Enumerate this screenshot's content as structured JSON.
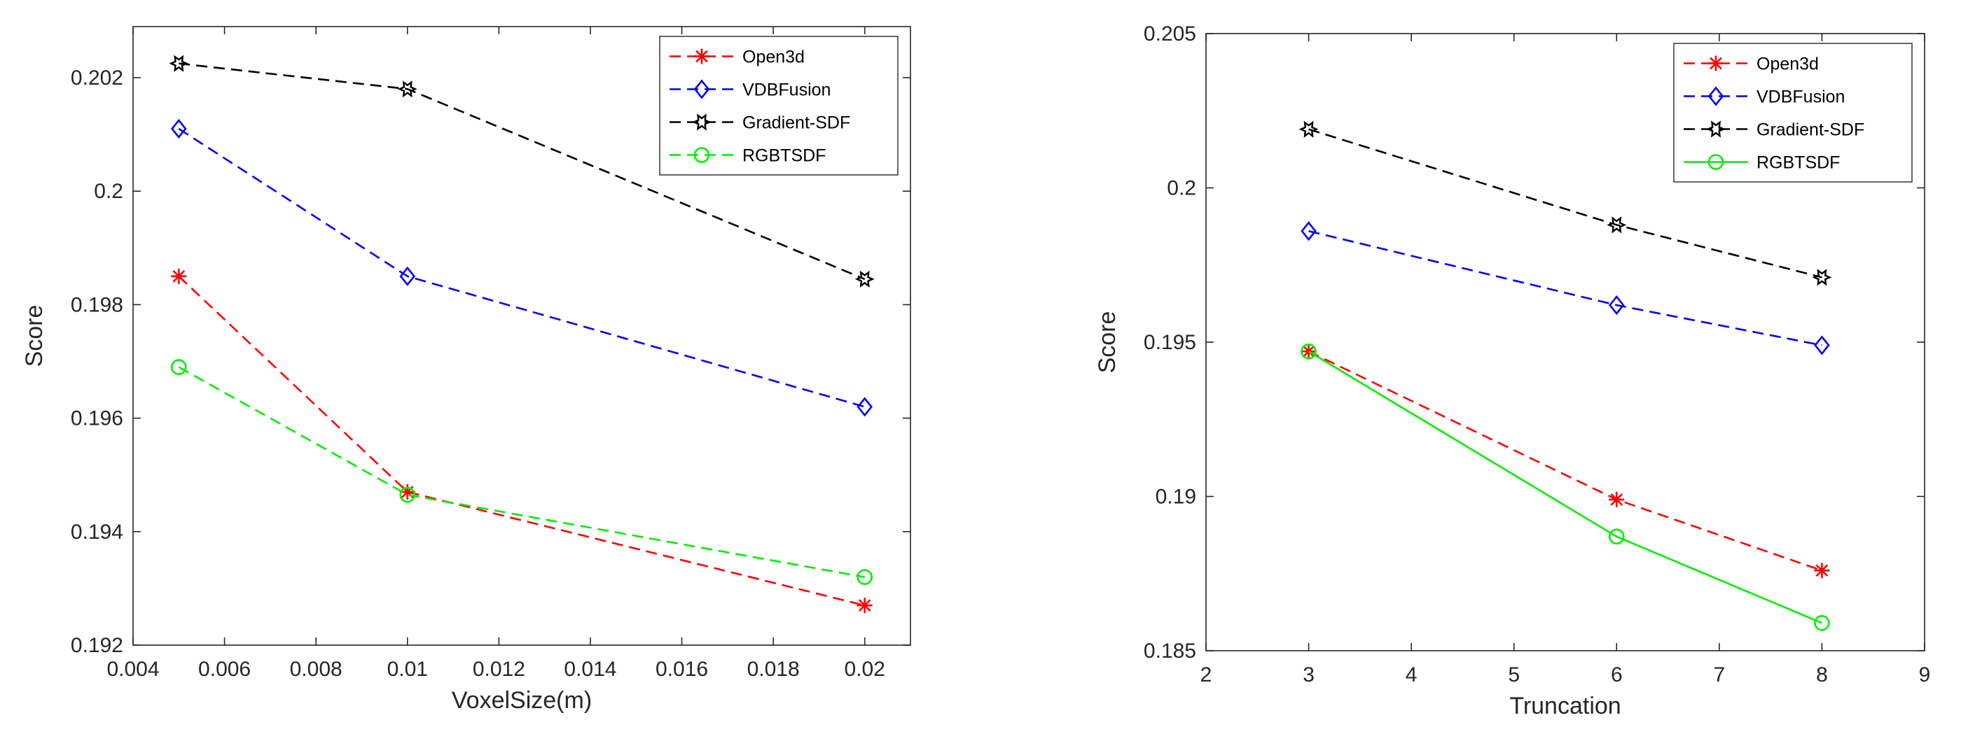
{
  "chart_data": [
    {
      "type": "line",
      "title": "",
      "xlabel": "VoxelSize(m)",
      "ylabel": "Score",
      "xlim": [
        0.004,
        0.021
      ],
      "ylim": [
        0.192,
        0.2029
      ],
      "xticks": [
        0.004,
        0.006,
        0.008,
        0.01,
        0.012,
        0.014,
        0.016,
        0.018,
        0.02
      ],
      "xtick_labels": [
        "0.004",
        "0.006",
        "0.008",
        "0.01",
        "0.012",
        "0.014",
        "0.016",
        "0.018",
        "0.02"
      ],
      "yticks": [
        0.192,
        0.194,
        0.196,
        0.198,
        0.2,
        0.202
      ],
      "ytick_labels": [
        "0.192",
        "0.194",
        "0.196",
        "0.198",
        "0.2",
        "0.202"
      ],
      "x": [
        0.005,
        0.01,
        0.02
      ],
      "legend_position": "top-right",
      "series": [
        {
          "name": "Open3d",
          "values": [
            0.1985,
            0.1947,
            0.1927
          ],
          "color": "#ff0000",
          "marker": "star",
          "line": "dashed"
        },
        {
          "name": "VDBFusion",
          "values": [
            0.2011,
            0.1985,
            0.1962
          ],
          "color": "#0000ff",
          "marker": "diamond",
          "line": "dashed"
        },
        {
          "name": "Gradient-SDF",
          "values": [
            0.20225,
            0.2018,
            0.19845
          ],
          "color": "#000000",
          "marker": "hexagram",
          "line": "dashed"
        },
        {
          "name": "RGBTSDF",
          "values": [
            0.1969,
            0.19465,
            0.1932
          ],
          "color": "#00ee00",
          "marker": "circle",
          "line": "dashed"
        }
      ]
    },
    {
      "type": "line",
      "title": "",
      "xlabel": "Truncation",
      "ylabel": "Score",
      "xlim": [
        2,
        9
      ],
      "ylim": [
        0.185,
        0.205
      ],
      "xticks": [
        2,
        3,
        4,
        5,
        6,
        7,
        8,
        9
      ],
      "xtick_labels": [
        "2",
        "3",
        "4",
        "5",
        "6",
        "7",
        "8",
        "9"
      ],
      "yticks": [
        0.185,
        0.19,
        0.195,
        0.2,
        0.205
      ],
      "ytick_labels": [
        "0.185",
        "0.19",
        "0.195",
        "0.2",
        "0.205"
      ],
      "x": [
        3,
        6,
        8
      ],
      "legend_position": "top-right",
      "series": [
        {
          "name": "Open3d",
          "values": [
            0.1947,
            0.1899,
            0.1876
          ],
          "color": "#ff0000",
          "marker": "star",
          "line": "dashed"
        },
        {
          "name": "VDBFusion",
          "values": [
            0.1986,
            0.1962,
            0.1949
          ],
          "color": "#0000ff",
          "marker": "diamond",
          "line": "dashed"
        },
        {
          "name": "Gradient-SDF",
          "values": [
            0.2019,
            0.1988,
            0.1971
          ],
          "color": "#000000",
          "marker": "hexagram",
          "line": "dashed"
        },
        {
          "name": "RGBTSDF",
          "values": [
            0.1947,
            0.1887,
            0.1859
          ],
          "color": "#00ee00",
          "marker": "circle",
          "line": "solid"
        }
      ]
    }
  ]
}
